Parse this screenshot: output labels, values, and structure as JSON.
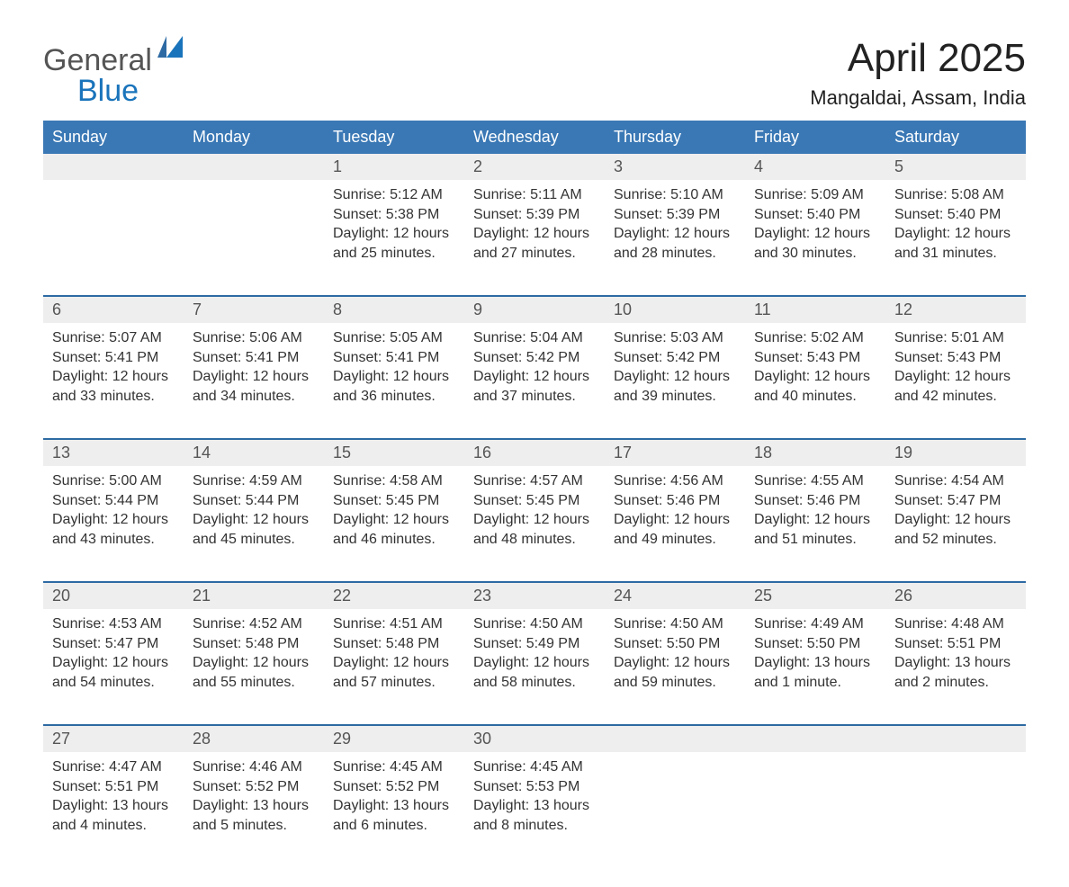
{
  "logo": {
    "part1": "General",
    "part2": "Blue"
  },
  "title": "April 2025",
  "location": "Mangaldai, Assam, India",
  "colors": {
    "header_blue": "#3a78b5",
    "header_blue_dark": "#2d6aa3",
    "row_bg": "#eeeeee",
    "text": "#333333",
    "title": "#222222",
    "logo_gray": "#555555",
    "logo_blue": "#1a74bb",
    "page_bg": "#ffffff"
  },
  "typography": {
    "title_fontsize": 44,
    "location_fontsize": 22,
    "weekday_fontsize": 18,
    "daynum_fontsize": 18,
    "body_fontsize": 16,
    "logo_fontsize": 34
  },
  "layout": {
    "columns": 7,
    "rows": 5
  },
  "weekdays": [
    "Sunday",
    "Monday",
    "Tuesday",
    "Wednesday",
    "Thursday",
    "Friday",
    "Saturday"
  ],
  "weeks": [
    [
      {
        "day": "",
        "body": ""
      },
      {
        "day": "",
        "body": ""
      },
      {
        "day": "1",
        "body": "Sunrise: 5:12 AM\nSunset: 5:38 PM\nDaylight: 12 hours and 25 minutes."
      },
      {
        "day": "2",
        "body": "Sunrise: 5:11 AM\nSunset: 5:39 PM\nDaylight: 12 hours and 27 minutes."
      },
      {
        "day": "3",
        "body": "Sunrise: 5:10 AM\nSunset: 5:39 PM\nDaylight: 12 hours and 28 minutes."
      },
      {
        "day": "4",
        "body": "Sunrise: 5:09 AM\nSunset: 5:40 PM\nDaylight: 12 hours and 30 minutes."
      },
      {
        "day": "5",
        "body": "Sunrise: 5:08 AM\nSunset: 5:40 PM\nDaylight: 12 hours and 31 minutes."
      }
    ],
    [
      {
        "day": "6",
        "body": "Sunrise: 5:07 AM\nSunset: 5:41 PM\nDaylight: 12 hours and 33 minutes."
      },
      {
        "day": "7",
        "body": "Sunrise: 5:06 AM\nSunset: 5:41 PM\nDaylight: 12 hours and 34 minutes."
      },
      {
        "day": "8",
        "body": "Sunrise: 5:05 AM\nSunset: 5:41 PM\nDaylight: 12 hours and 36 minutes."
      },
      {
        "day": "9",
        "body": "Sunrise: 5:04 AM\nSunset: 5:42 PM\nDaylight: 12 hours and 37 minutes."
      },
      {
        "day": "10",
        "body": "Sunrise: 5:03 AM\nSunset: 5:42 PM\nDaylight: 12 hours and 39 minutes."
      },
      {
        "day": "11",
        "body": "Sunrise: 5:02 AM\nSunset: 5:43 PM\nDaylight: 12 hours and 40 minutes."
      },
      {
        "day": "12",
        "body": "Sunrise: 5:01 AM\nSunset: 5:43 PM\nDaylight: 12 hours and 42 minutes."
      }
    ],
    [
      {
        "day": "13",
        "body": "Sunrise: 5:00 AM\nSunset: 5:44 PM\nDaylight: 12 hours and 43 minutes."
      },
      {
        "day": "14",
        "body": "Sunrise: 4:59 AM\nSunset: 5:44 PM\nDaylight: 12 hours and 45 minutes."
      },
      {
        "day": "15",
        "body": "Sunrise: 4:58 AM\nSunset: 5:45 PM\nDaylight: 12 hours and 46 minutes."
      },
      {
        "day": "16",
        "body": "Sunrise: 4:57 AM\nSunset: 5:45 PM\nDaylight: 12 hours and 48 minutes."
      },
      {
        "day": "17",
        "body": "Sunrise: 4:56 AM\nSunset: 5:46 PM\nDaylight: 12 hours and 49 minutes."
      },
      {
        "day": "18",
        "body": "Sunrise: 4:55 AM\nSunset: 5:46 PM\nDaylight: 12 hours and 51 minutes."
      },
      {
        "day": "19",
        "body": "Sunrise: 4:54 AM\nSunset: 5:47 PM\nDaylight: 12 hours and 52 minutes."
      }
    ],
    [
      {
        "day": "20",
        "body": "Sunrise: 4:53 AM\nSunset: 5:47 PM\nDaylight: 12 hours and 54 minutes."
      },
      {
        "day": "21",
        "body": "Sunrise: 4:52 AM\nSunset: 5:48 PM\nDaylight: 12 hours and 55 minutes."
      },
      {
        "day": "22",
        "body": "Sunrise: 4:51 AM\nSunset: 5:48 PM\nDaylight: 12 hours and 57 minutes."
      },
      {
        "day": "23",
        "body": "Sunrise: 4:50 AM\nSunset: 5:49 PM\nDaylight: 12 hours and 58 minutes."
      },
      {
        "day": "24",
        "body": "Sunrise: 4:50 AM\nSunset: 5:50 PM\nDaylight: 12 hours and 59 minutes."
      },
      {
        "day": "25",
        "body": "Sunrise: 4:49 AM\nSunset: 5:50 PM\nDaylight: 13 hours and 1 minute."
      },
      {
        "day": "26",
        "body": "Sunrise: 4:48 AM\nSunset: 5:51 PM\nDaylight: 13 hours and 2 minutes."
      }
    ],
    [
      {
        "day": "27",
        "body": "Sunrise: 4:47 AM\nSunset: 5:51 PM\nDaylight: 13 hours and 4 minutes."
      },
      {
        "day": "28",
        "body": "Sunrise: 4:46 AM\nSunset: 5:52 PM\nDaylight: 13 hours and 5 minutes."
      },
      {
        "day": "29",
        "body": "Sunrise: 4:45 AM\nSunset: 5:52 PM\nDaylight: 13 hours and 6 minutes."
      },
      {
        "day": "30",
        "body": "Sunrise: 4:45 AM\nSunset: 5:53 PM\nDaylight: 13 hours and 8 minutes."
      },
      {
        "day": "",
        "body": ""
      },
      {
        "day": "",
        "body": ""
      },
      {
        "day": "",
        "body": ""
      }
    ]
  ]
}
